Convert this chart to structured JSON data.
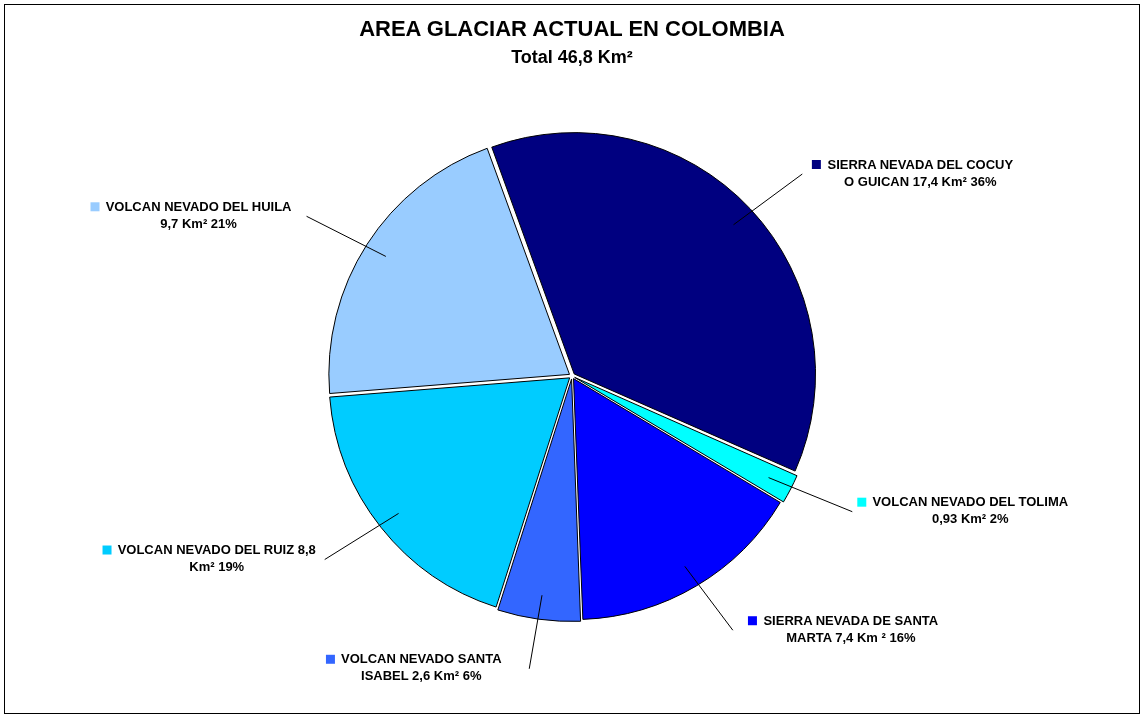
{
  "chart_data": {
    "type": "pie",
    "title": "AREA GLACIAR ACTUAL EN COLOMBIA",
    "subtitle": "Total 46,8 Km²",
    "categories": [
      "SIERRA NEVADA DEL COCUY O GUICAN",
      "VOLCAN NEVADO DEL TOLIMA",
      "SIERRA NEVADA DE SANTA MARTA",
      "VOLCAN NEVADO SANTA ISABEL",
      "VOLCAN NEVADO DEL RUIZ",
      "VOLCAN NEVADO DEL HUILA"
    ],
    "values": [
      17.4,
      0.93,
      7.4,
      2.6,
      8.8,
      9.7
    ],
    "value_labels": [
      "17,4 Km² 36%",
      "0,93 Km² 2%",
      "7,4 Km ² 16%",
      "2,6 Km² 6%",
      "8,8 Km² 19%",
      "9,7 Km² 21%"
    ],
    "colors": [
      "#000080",
      "#00ffff",
      "#0000ff",
      "#3366ff",
      "#00ccff",
      "#99ccff"
    ],
    "legend": "right"
  }
}
